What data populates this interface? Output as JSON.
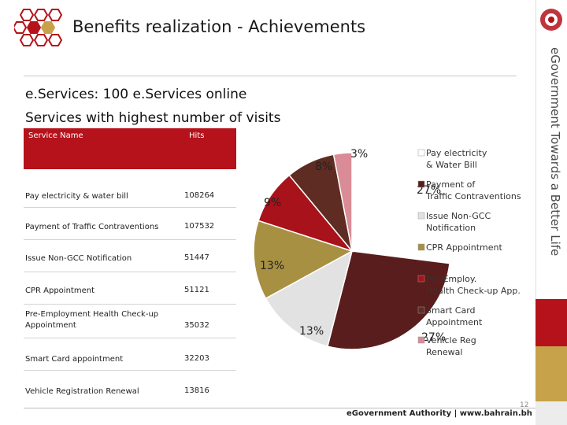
{
  "header": {
    "title": "Benefits realization - Achievements"
  },
  "content": {
    "line1": "e.Services: 100 e.Services online",
    "line2": "Services with highest number of visits"
  },
  "table": {
    "headers": [
      "Service Name",
      "Hits"
    ],
    "rows": [
      {
        "name": "Pay electricity & water bill",
        "hits": "108264"
      },
      {
        "name": "Payment of Traffic Contraventions",
        "hits": "107532"
      },
      {
        "name": "Issue Non-GCC Notification",
        "hits": "51447"
      },
      {
        "name": "CPR Appointment",
        "hits": "51121"
      },
      {
        "name": "Pre-Employment Health Check-up Appointment",
        "hits": "35032"
      },
      {
        "name": "Smart Card appointment",
        "hits": "32203"
      },
      {
        "name": "Vehicle  Registration  Renewal",
        "hits": "13816"
      }
    ]
  },
  "chart_data": {
    "type": "pie",
    "labels": [
      "Pay electricity & Water Bill",
      "Payment of Traffic Contraventions",
      "Issue Non-GCC Notification",
      "CPR Appointment",
      "Pre-Employ. Health Check-up App.",
      "Smart Card Appointment",
      "Vehicle Reg Renewal"
    ],
    "values": [
      27,
      27,
      13,
      13,
      9,
      8,
      3
    ],
    "value_labels": [
      "27%",
      "27%",
      "13%",
      "13%",
      "9%",
      "8%",
      "3%"
    ],
    "colors": [
      "#ffffff",
      "#5a1d1d",
      "#e2e2e2",
      "#a89042",
      "#a8121a",
      "#5e2c22",
      "#d98c96"
    ],
    "legend_position": "right",
    "title": ""
  },
  "footer": {
    "brand": "eGovernment Authority | www.bahrain.bh",
    "page": "12",
    "side_text": "eGovernment Towards a Better Life"
  }
}
